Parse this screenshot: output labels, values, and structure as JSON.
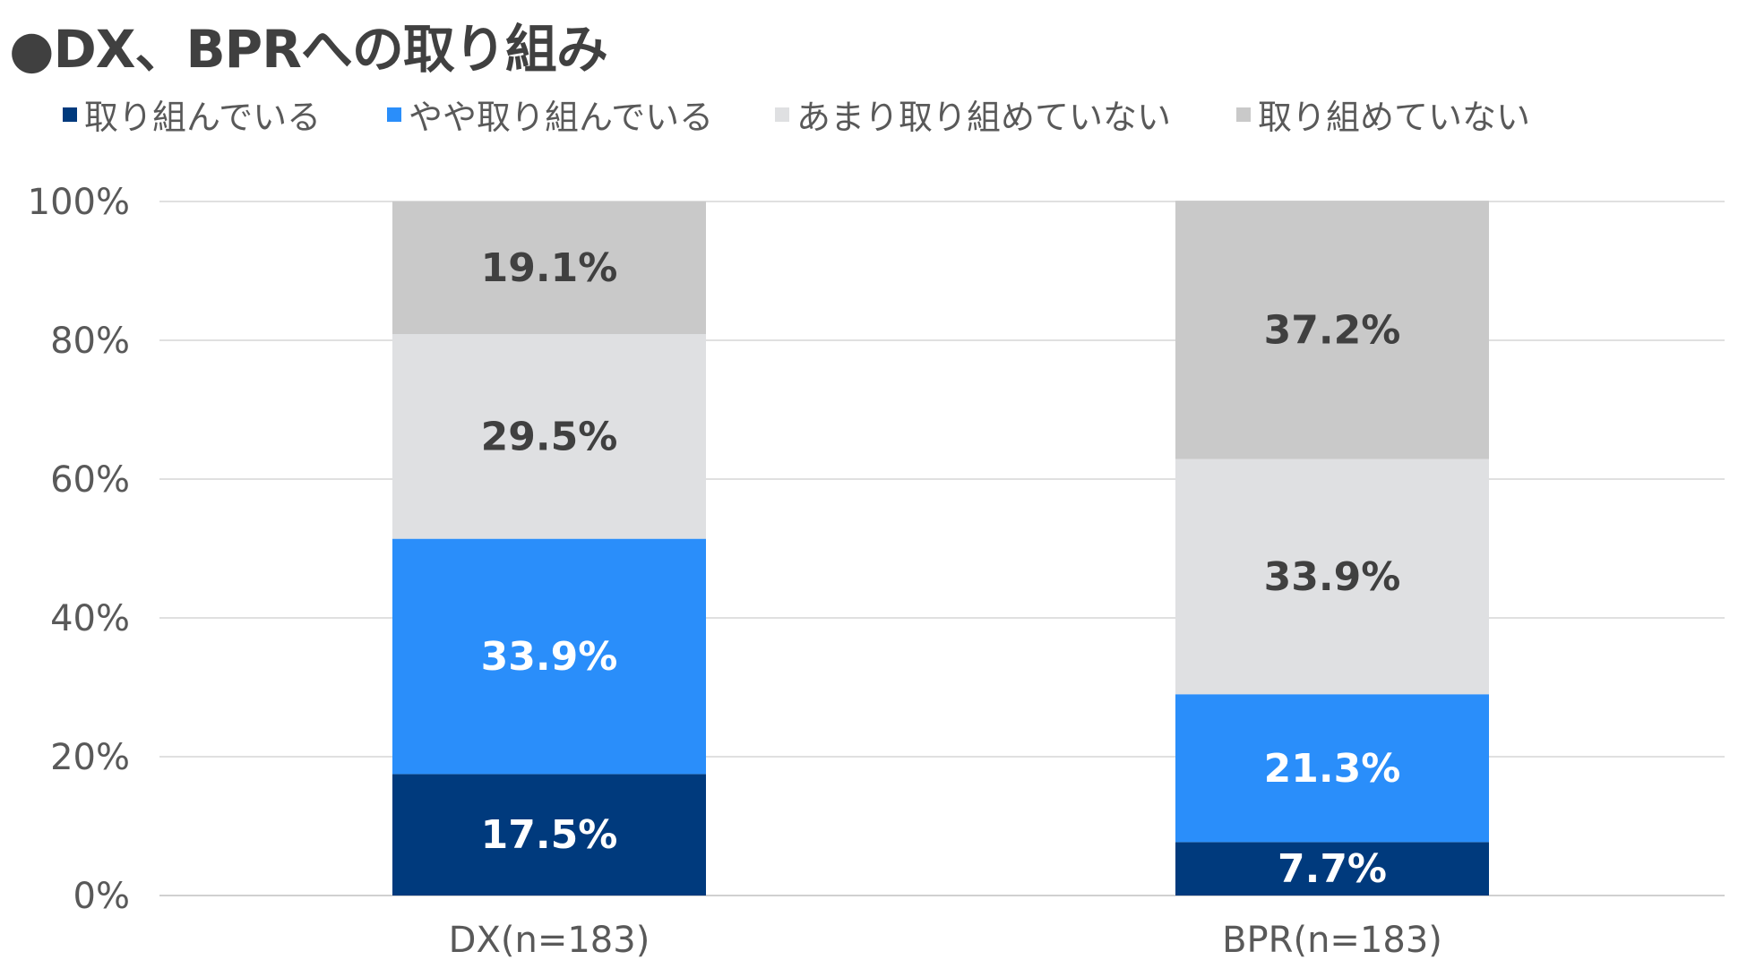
{
  "chart_data": {
    "type": "bar",
    "stacked": true,
    "title": "●DX、BPRへの取り組み",
    "categories": [
      "DX(n=183)",
      "BPR(n=183)"
    ],
    "series": [
      {
        "name": "取り組んでいる",
        "color": "#003a7d",
        "label_color": "#ffffff",
        "values": [
          17.5,
          7.7
        ],
        "labels": [
          "17.5%",
          "7.7%"
        ]
      },
      {
        "name": "やや取り組んでいる",
        "color": "#2a8efa",
        "label_color": "#ffffff",
        "values": [
          33.9,
          21.3
        ],
        "labels": [
          "33.9%",
          "21.3%"
        ]
      },
      {
        "name": "あまり取り組めていない",
        "color": "#dfe0e2",
        "label_color": "#404040",
        "values": [
          29.5,
          33.9
        ],
        "labels": [
          "29.5%",
          "33.9%"
        ]
      },
      {
        "name": "取り組めていない",
        "color": "#c9c9c9",
        "label_color": "#404040",
        "values": [
          19.1,
          37.2
        ],
        "labels": [
          "19.1%",
          "37.2%"
        ]
      }
    ],
    "ylim": [
      0,
      100
    ],
    "yticks": [
      "0%",
      "20%",
      "40%",
      "60%",
      "80%",
      "100%"
    ],
    "grid": true,
    "legend_position": "top"
  }
}
